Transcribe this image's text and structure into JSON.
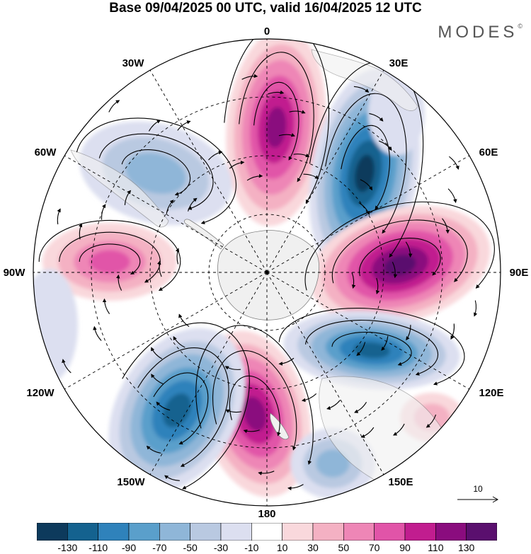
{
  "title": "Base 09/04/2025 00 UTC, valid 16/04/2025 12 UTC",
  "brand": "MODES",
  "brand_mark": "©",
  "longitude_labels": {
    "lon_0": "0",
    "lon_30e": "30E",
    "lon_60e": "60E",
    "lon_90e": "90E",
    "lon_120e": "120E",
    "lon_150e": "150E",
    "lon_180": "180",
    "lon_150w": "150W",
    "lon_120w": "120W",
    "lon_90w": "90W",
    "lon_60w": "60W",
    "lon_30w": "30W"
  },
  "reference_vector": {
    "label": "10"
  },
  "colorbar": {
    "ticks": [
      "-130",
      "-110",
      "-90",
      "-70",
      "-50",
      "-30",
      "-10",
      "10",
      "30",
      "50",
      "70",
      "90",
      "110",
      "130"
    ],
    "colors": [
      "#0d3a5c",
      "#14628f",
      "#2f82bb",
      "#5a9fcb",
      "#8fb6d8",
      "#b9c9e1",
      "#dcdff0",
      "#ffffff",
      "#f9d8dc",
      "#f4b1c3",
      "#ee86b6",
      "#e154a8",
      "#c11d8f",
      "#8a0c7e",
      "#5a0f6e"
    ]
  },
  "map_features": {
    "projection": "south polar stereographic",
    "anomaly_centers": [
      {
        "sign": "positive",
        "level": 110,
        "lon": 10,
        "desc": "near 0"
      },
      {
        "sign": "negative",
        "level": -130,
        "lon": 35
      },
      {
        "sign": "positive",
        "level": 130,
        "lon": 85
      },
      {
        "sign": "negative",
        "level": -110,
        "lon": 125
      },
      {
        "sign": "positive",
        "level": 110,
        "lon": 175
      },
      {
        "sign": "negative",
        "level": -110,
        "lon": -150
      },
      {
        "sign": "positive",
        "level": 70,
        "lon": -85
      },
      {
        "sign": "negative",
        "level": -50,
        "lon": -55
      }
    ]
  }
}
